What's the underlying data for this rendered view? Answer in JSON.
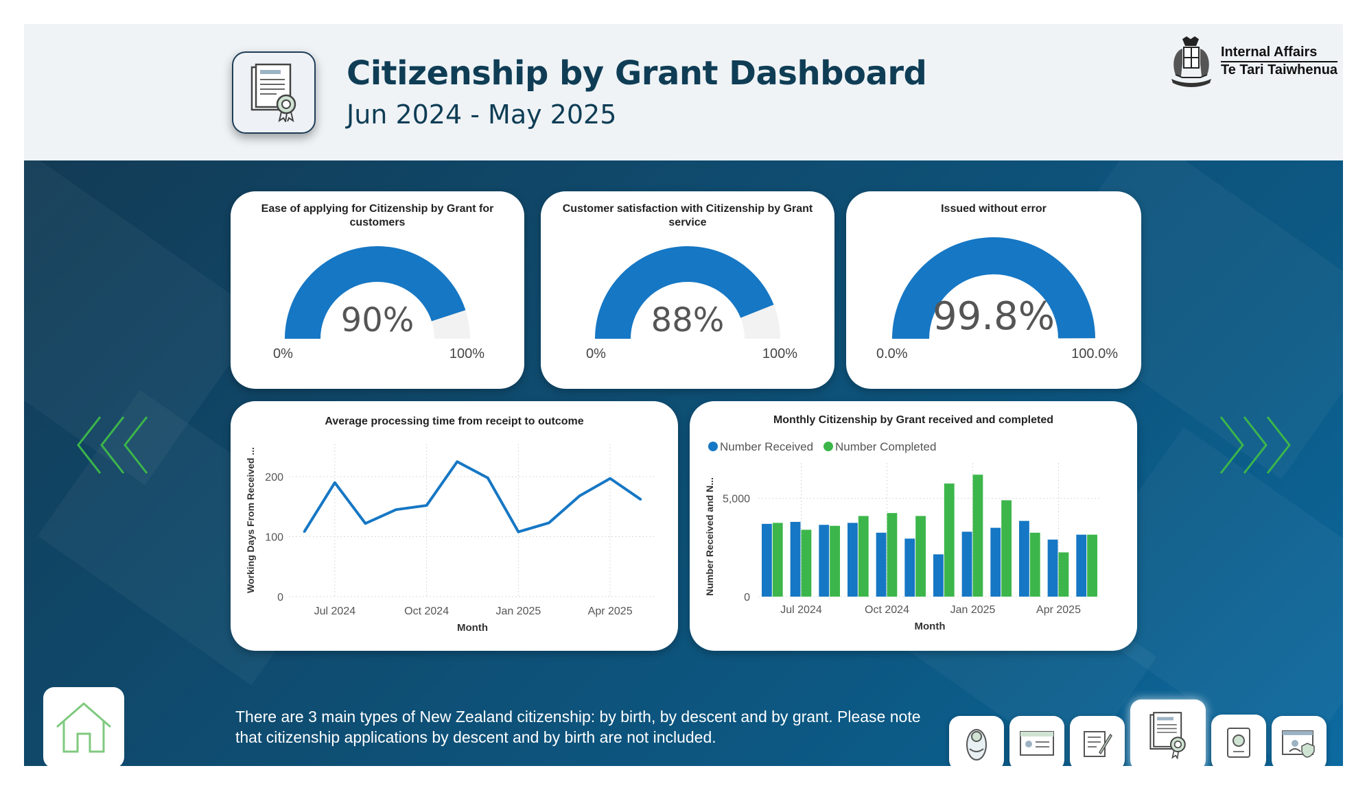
{
  "header": {
    "title": "Citizenship by Grant Dashboard",
    "subtitle": "Jun 2024 - May 2025",
    "app_icon": "certificate-icon",
    "logo": {
      "line1": "Internal Affairs",
      "line2": "Te Tari Taiwhenua",
      "icon": "coat-of-arms-icon"
    }
  },
  "gauges": [
    {
      "title": "Ease of applying for Citizenship by Grant for customers",
      "value_label": "90%",
      "value": 0.9,
      "min_label": "0%",
      "max_label": "100%"
    },
    {
      "title": "Customer satisfaction with Citizenship by Grant service",
      "value_label": "88%",
      "value": 0.88,
      "min_label": "0%",
      "max_label": "100%"
    },
    {
      "title": "Issued without error",
      "value_label": "99.8%",
      "value": 0.998,
      "min_label": "0.0%",
      "max_label": "100.0%"
    }
  ],
  "colors": {
    "blue": "#1677c4",
    "green": "#3cb64a",
    "gauge_bg": "#f2f2f2",
    "chevron": "#3cb64a"
  },
  "chart_data": [
    {
      "type": "line",
      "title": "Average processing time from receipt to outcome",
      "xlabel": "Month",
      "ylabel": "Working Days From Received ...",
      "x": [
        "Jun 2024",
        "Jul 2024",
        "Aug 2024",
        "Sep 2024",
        "Oct 2024",
        "Nov 2024",
        "Dec 2024",
        "Jan 2025",
        "Feb 2025",
        "Mar 2025",
        "Apr 2025",
        "May 2025"
      ],
      "values": [
        108,
        190,
        122,
        145,
        152,
        225,
        198,
        108,
        123,
        168,
        197,
        162
      ],
      "xticks": [
        "Jul 2024",
        "Oct 2024",
        "Jan 2025",
        "Apr 2025"
      ],
      "yticks": [
        "0",
        "100",
        "200"
      ],
      "ylim": [
        0,
        255
      ],
      "grid": true
    },
    {
      "type": "bar",
      "title": "Monthly Citizenship by Grant received and completed",
      "xlabel": "Month",
      "ylabel": "Number Received and N...",
      "categories": [
        "Jun 2024",
        "Jul 2024",
        "Aug 2024",
        "Sep 2024",
        "Oct 2024",
        "Nov 2024",
        "Dec 2024",
        "Jan 2025",
        "Feb 2025",
        "Mar 2025",
        "Apr 2025",
        "May 2025"
      ],
      "series": [
        {
          "name": "Number Received",
          "values": [
            3700,
            3800,
            3650,
            3750,
            3250,
            2950,
            2150,
            3300,
            3500,
            3850,
            2900,
            3150
          ]
        },
        {
          "name": "Number Completed",
          "values": [
            3750,
            3400,
            3600,
            4100,
            4250,
            4100,
            5750,
            6200,
            4900,
            3250,
            2250,
            3150
          ]
        }
      ],
      "xticks": [
        "Jul 2024",
        "Oct 2024",
        "Jan 2025",
        "Apr 2025"
      ],
      "yticks": [
        "0",
        "5,000"
      ],
      "ylim": [
        0,
        6800
      ],
      "legend": "top-left",
      "grid": true
    }
  ],
  "footer": {
    "info_text": "There are 3 main types of New Zealand citizenship: by birth, by descent and by grant. Please note that citizenship applications by descent and by birth are not included.",
    "home_icon": "home-icon",
    "nav_tiles": [
      "baby-icon",
      "id-card-icon",
      "document-sign-icon",
      "certificate-icon",
      "passport-icon",
      "verified-id-icon"
    ]
  },
  "nav": {
    "prev_icon": "chevron-left-icon",
    "next_icon": "chevron-right-icon"
  }
}
